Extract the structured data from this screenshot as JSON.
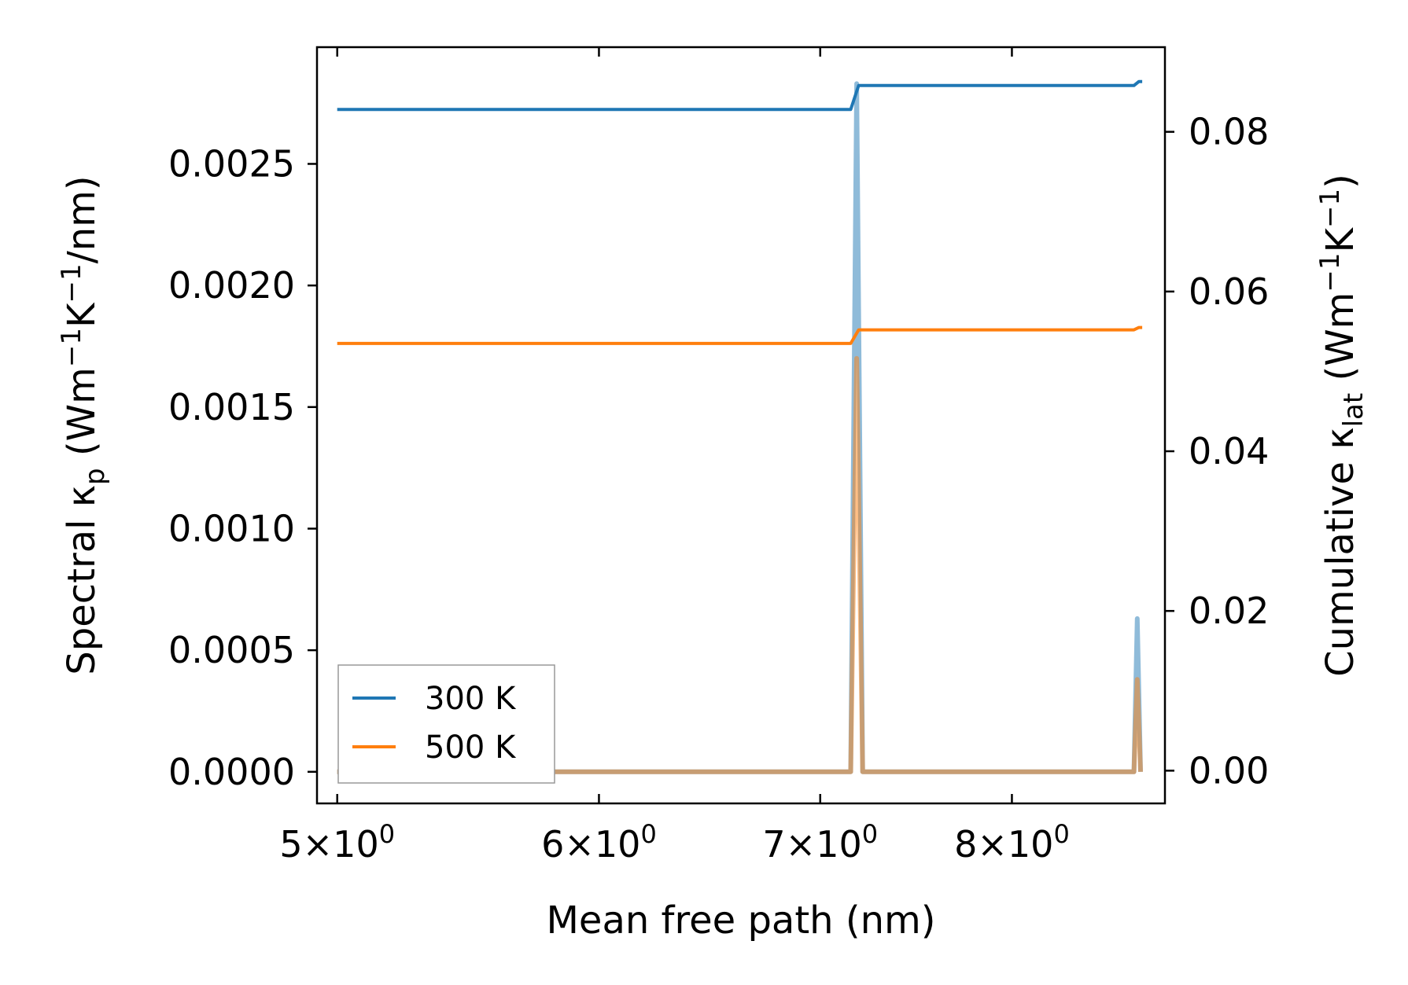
{
  "chart_data": {
    "type": "line",
    "xscale": "log",
    "xlabel": "Mean free path (nm)",
    "xlim": [
      4.93,
      8.9
    ],
    "xticks": [
      5,
      6,
      7,
      8
    ],
    "xtick_labels": [
      {
        "base": "5",
        "exp": "0"
      },
      {
        "base": "6",
        "exp": "0"
      },
      {
        "base": "7",
        "exp": "0"
      },
      {
        "base": "8",
        "exp": "0"
      }
    ],
    "left_axis": {
      "label_parts": [
        {
          "t": "Spectral κ"
        },
        {
          "t": "p",
          "sub": true
        },
        {
          "t": " (Wm"
        },
        {
          "t": "−1",
          "sup": true
        },
        {
          "t": "K"
        },
        {
          "t": "−1",
          "sup": true
        },
        {
          "t": "/nm)"
        }
      ],
      "ylim": [
        -0.00013,
        0.00298
      ],
      "ticks": [
        0.0,
        0.0005,
        0.001,
        0.0015,
        0.002,
        0.0025
      ],
      "tick_labels": [
        "0.0000",
        "0.0005",
        "0.0010",
        "0.0015",
        "0.0020",
        "0.0025"
      ]
    },
    "right_axis": {
      "label_parts": [
        {
          "t": "Cumulative κ"
        },
        {
          "t": "lat",
          "sub": true
        },
        {
          "t": " (Wm"
        },
        {
          "t": "−1",
          "sup": true
        },
        {
          "t": "K"
        },
        {
          "t": "−1",
          "sup": true
        },
        {
          "t": ")"
        }
      ],
      "ylim": [
        -0.0041,
        0.0906
      ],
      "ticks": [
        0.0,
        0.02,
        0.04,
        0.06,
        0.08
      ],
      "tick_labels": [
        "0.00",
        "0.02",
        "0.04",
        "0.06",
        "0.08"
      ]
    },
    "legend": {
      "location": "lower left",
      "entries": [
        "300 K",
        "500 K"
      ]
    },
    "series": [
      {
        "name": "300 K",
        "color": "#1f77b4",
        "spectral": {
          "x": [
            5.0,
            7.15,
            7.18,
            7.21,
            7.24,
            8.71,
            8.73,
            8.75
          ],
          "y": [
            0.0,
            0.0,
            0.00283,
            0.0,
            0.0,
            0.0,
            0.00063,
            0.0
          ]
        },
        "cumulative": {
          "x": [
            5.0,
            7.15,
            7.19,
            8.71,
            8.74,
            8.76
          ],
          "y": [
            0.0828,
            0.0828,
            0.0858,
            0.0858,
            0.0863,
            0.0863
          ]
        }
      },
      {
        "name": "500 K",
        "color": "#ff7f0e",
        "spectral": {
          "x": [
            5.0,
            7.15,
            7.18,
            7.21,
            7.24,
            8.71,
            8.73,
            8.75
          ],
          "y": [
            0.0,
            0.0,
            0.0017,
            0.0,
            0.0,
            0.0,
            0.00038,
            0.0
          ]
        },
        "cumulative": {
          "x": [
            5.0,
            7.15,
            7.19,
            8.71,
            8.74,
            8.76
          ],
          "y": [
            0.0535,
            0.0535,
            0.0552,
            0.0552,
            0.0555,
            0.0555
          ]
        }
      }
    ]
  }
}
